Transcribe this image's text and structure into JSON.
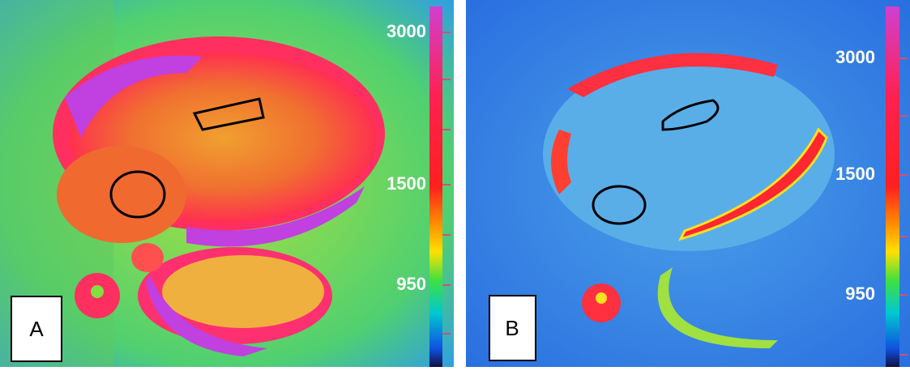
{
  "panels": [
    {
      "label": "A",
      "colorbar_labels": [
        "3000",
        "1500",
        "950"
      ]
    },
    {
      "label": "B",
      "colorbar_labels": [
        "3000",
        "1500",
        "950"
      ]
    }
  ]
}
